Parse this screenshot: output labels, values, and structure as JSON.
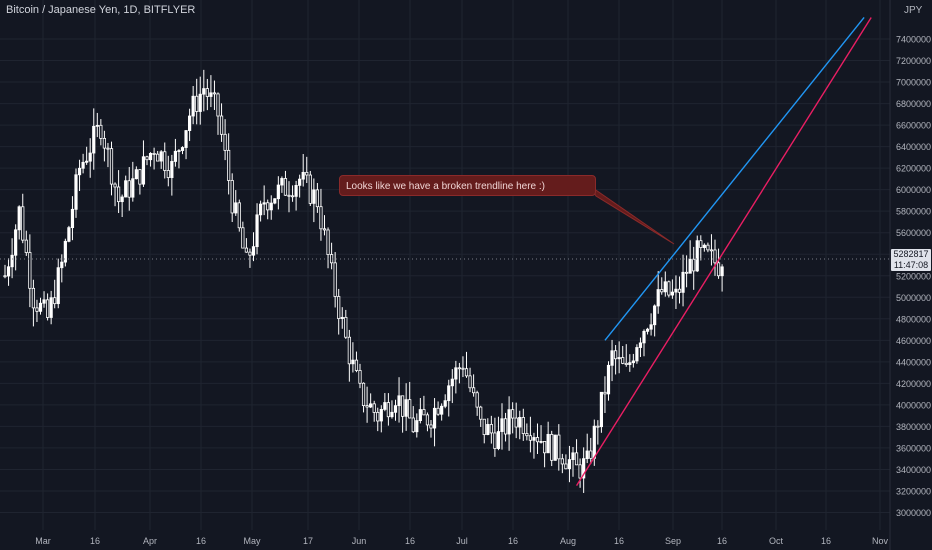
{
  "header": {
    "title": "Bitcoin / Japanese Yen, 1D, BITFLYER",
    "currency": "JPY"
  },
  "last_price": {
    "value": "5282817",
    "countdown": "11:47:08"
  },
  "annotation": {
    "text": "Looks like we have a broken trendline here :)"
  },
  "colors": {
    "background": "#131722",
    "candle": "#ffffff",
    "blue_trendline": "#2196f3",
    "red_trendline": "#e91e63",
    "callout_bg": "#641c1c",
    "grid": "#1f2430",
    "axis_text": "#b2b5be"
  },
  "chart_data": {
    "type": "candlestick",
    "title": "Bitcoin / Japanese Yen, 1D, BITFLYER",
    "ylabel": "JPY",
    "ylim": [
      2850000,
      7500000
    ],
    "y_ticks": [
      "3000000",
      "3200000",
      "3400000",
      "3600000",
      "3800000",
      "4000000",
      "4200000",
      "4400000",
      "4600000",
      "4800000",
      "5000000",
      "5200000",
      "5400000",
      "5600000",
      "5800000",
      "6000000",
      "6200000",
      "6400000",
      "6600000",
      "6800000",
      "7000000",
      "7200000",
      "7400000"
    ],
    "x_ticks": [
      "Mar",
      "16",
      "Apr",
      "16",
      "May",
      "17",
      "Jun",
      "16",
      "Jul",
      "16",
      "Aug",
      "16",
      "Sep",
      "16",
      "Oct",
      "16",
      "Nov"
    ],
    "grid": true,
    "last_price": 5282817,
    "anchors": [
      [
        0,
        5200000
      ],
      [
        4,
        5800000
      ],
      [
        8,
        5000000
      ],
      [
        12,
        4800000
      ],
      [
        16,
        5300000
      ],
      [
        21,
        6200000
      ],
      [
        27,
        6600000
      ],
      [
        32,
        5900000
      ],
      [
        37,
        6100000
      ],
      [
        42,
        6400000
      ],
      [
        47,
        6200000
      ],
      [
        52,
        6700000
      ],
      [
        56,
        6950000
      ],
      [
        60,
        6700000
      ],
      [
        64,
        5900000
      ],
      [
        68,
        5300000
      ],
      [
        73,
        5900000
      ],
      [
        78,
        6000000
      ],
      [
        83,
        6100000
      ],
      [
        88,
        5900000
      ],
      [
        92,
        5200000
      ],
      [
        96,
        4600000
      ],
      [
        100,
        4100000
      ],
      [
        105,
        3900000
      ],
      [
        110,
        4100000
      ],
      [
        115,
        3800000
      ],
      [
        120,
        3900000
      ],
      [
        125,
        4200000
      ],
      [
        129,
        4400000
      ],
      [
        134,
        3800000
      ],
      [
        139,
        3700000
      ],
      [
        143,
        3900000
      ],
      [
        148,
        3800000
      ],
      [
        152,
        3650000
      ],
      [
        157,
        3550000
      ],
      [
        161,
        3400000
      ],
      [
        164,
        3450000
      ],
      [
        168,
        4000000
      ],
      [
        171,
        4450000
      ],
      [
        175,
        4300000
      ],
      [
        178,
        4600000
      ],
      [
        182,
        4850000
      ],
      [
        185,
        5050000
      ],
      [
        189,
        5000000
      ],
      [
        192,
        5250000
      ],
      [
        195,
        5400000
      ],
      [
        199,
        5350000
      ],
      [
        202,
        5282817
      ]
    ],
    "trendlines": [
      {
        "color": "blue",
        "from": {
          "day": 169,
          "price": 4600000
        },
        "to": {
          "day": 242,
          "price": 7600000
        }
      },
      {
        "color": "red",
        "from": {
          "day": 161,
          "price": 3250000
        },
        "to": {
          "day": 244,
          "price": 7600000
        }
      }
    ],
    "callout": "Looks like we have a broken trendline here :)"
  }
}
